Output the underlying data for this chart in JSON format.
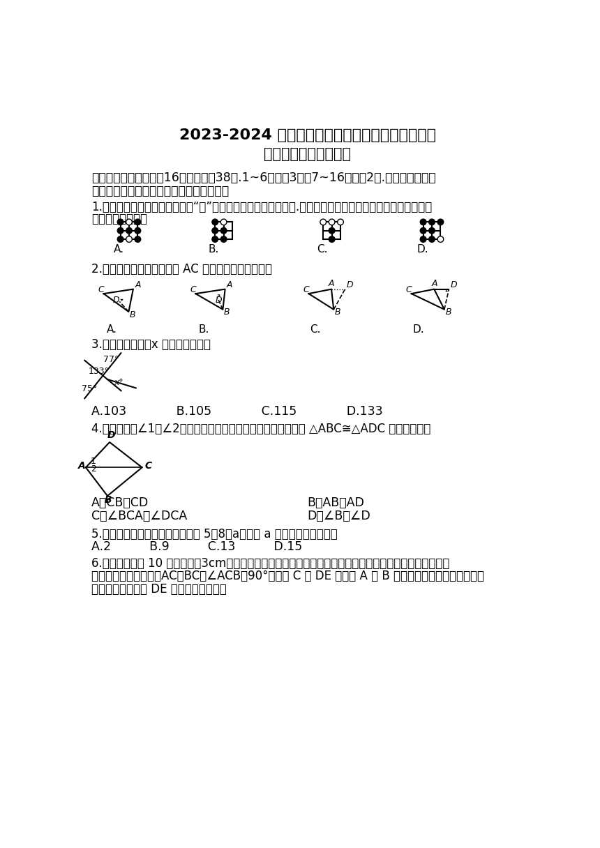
{
  "title1": "2023-2024 学年度第一学期期中课堂教学质量检测",
  "title2": "八年级数学（人教版）",
  "section1": "一、选择题（本大题全16个小题，全38分.1~6小题呅3分，7~16小题呅2分.在每小题给出的",
  "section1b": "四个选项中，只有一项是符合题目要求的）",
  "q1": "1.围棋起源于中国，古代称之为“弈”，至今已有四千多年的历史.下列由黑、白棋子摆成的图案中，是轴对称",
  "q1b": "图形的是（　　）",
  "q2": "2.在下列图形中，正确画出 AC 边上的高的是（　　）",
  "q3": "3.下面的图形中，x 的就为（　　）",
  "q3_opts": "A.103             B.105             C.115             D.133",
  "q4": "4.如图，已知∠1＝∠2，那么添加下列一个条件后，仍无法判定 △ABC≅△ADC 的是（　　）",
  "q4_optA": "A．CB＝CD",
  "q4_optB": "B．AB＝AD",
  "q4_optC": "C．∠BCA＝∠DCA",
  "q4_optD": "D．∠B＝∠D",
  "q5": "5.如果一个三角形的三边长分别为 5，8，a，那么 a 的値可能是（　　）",
  "q5_opts": "A.2          B.9          C.13          D.15",
  "q6": "6.如图，小虎用 10 块高度都是3cm的相同长方体小木块堂了两堵与地面垂直的木墙，木墙之间刚好可以放进",
  "q6b": "一个等腰直角三角板（AC＝BC，∠ACB＝90°），点 C 在 DE 上，点 A 和 B 分别与木墙的顶端重合，则两",
  "q6c": "堵木墙之间的距离 DE 的长度为（　　）",
  "bg_color": "#ffffff",
  "text_color": "#000000"
}
